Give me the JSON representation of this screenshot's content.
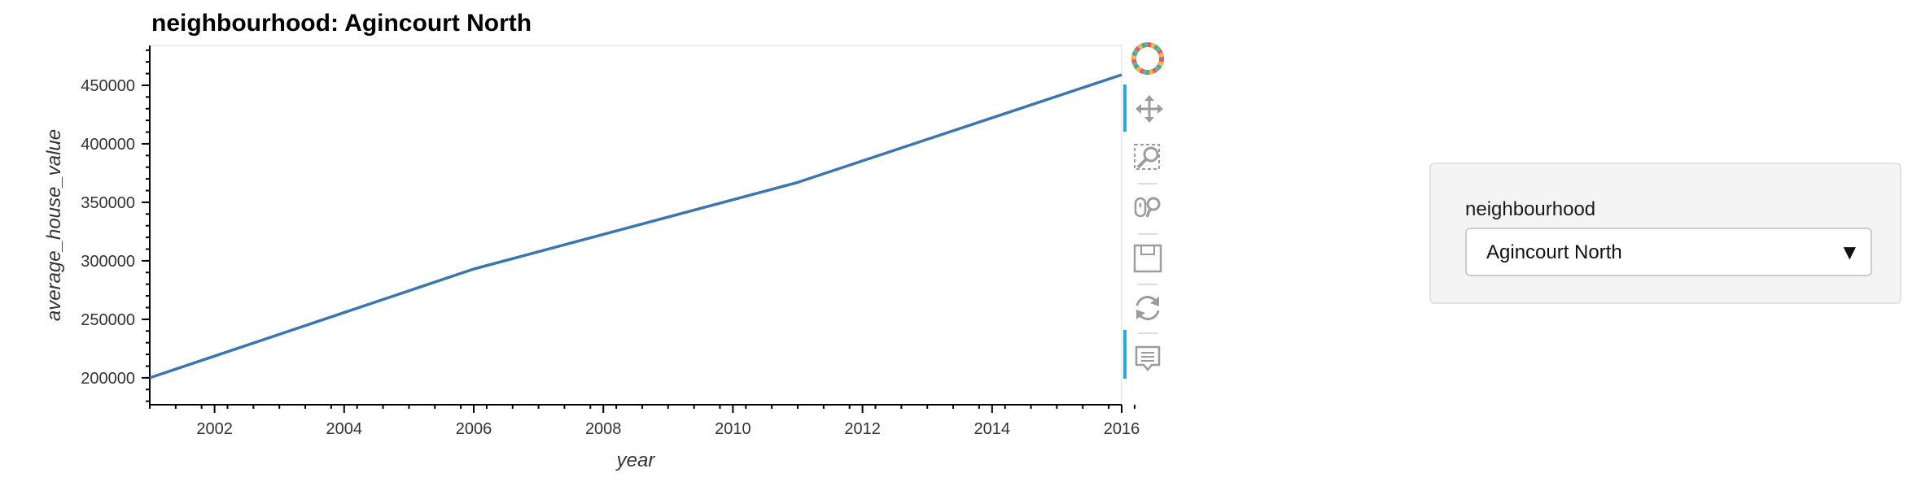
{
  "chart_data": {
    "type": "line",
    "title": "neighbourhood: Agincourt North",
    "xlabel": "year",
    "ylabel": "average_house_value",
    "xlim": [
      2001,
      2016
    ],
    "ylim": [
      177000,
      484000
    ],
    "xticks": [
      2002,
      2004,
      2006,
      2008,
      2010,
      2012,
      2014,
      2016
    ],
    "yticks": [
      200000,
      250000,
      300000,
      350000,
      400000,
      450000
    ],
    "x_minor_step": 0.4,
    "y_minor_step": 10000,
    "series": [
      {
        "color": "#3a76af",
        "x": [
          2001,
          2006,
          2011,
          2016
        ],
        "y": [
          200000,
          293000,
          367000,
          459000
        ]
      }
    ],
    "grid": false,
    "legend": "none"
  },
  "toolbar": {
    "tools": [
      {
        "name": "bokeh-logo-icon",
        "active": false
      },
      {
        "name": "pan-icon",
        "active": true
      },
      {
        "name": "box-zoom-icon",
        "active": false
      },
      {
        "name": "wheel-zoom-icon",
        "active": false
      },
      {
        "name": "save-icon",
        "active": false
      },
      {
        "name": "reset-icon",
        "active": false
      },
      {
        "name": "hover-icon",
        "active": true
      }
    ],
    "active_color": "#26aae1"
  },
  "widget": {
    "label": "neighbourhood",
    "selected": "Agincourt North"
  }
}
